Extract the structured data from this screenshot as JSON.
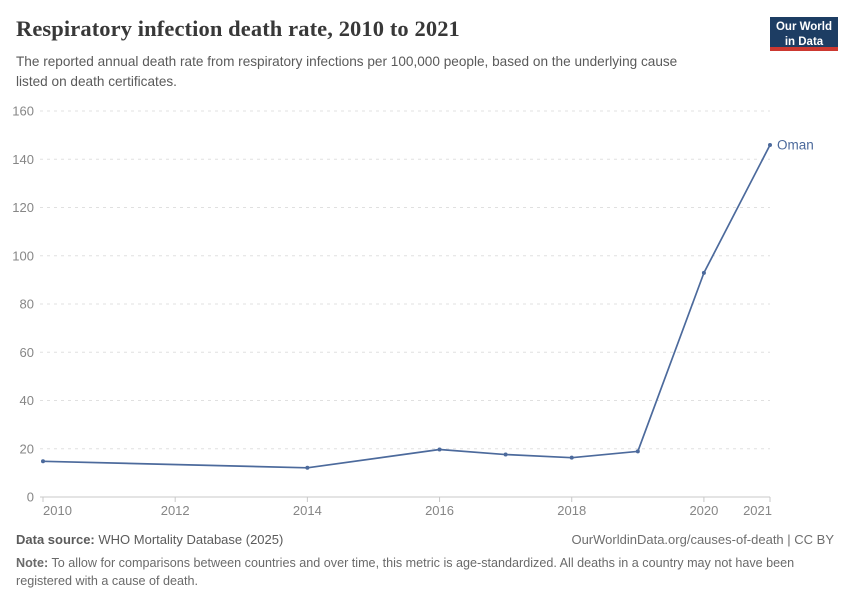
{
  "header": {
    "title": "Respiratory infection death rate, 2010 to 2021",
    "subtitle_line1": "The reported annual death rate from respiratory infections per 100,000 people, based on the underlying cause",
    "subtitle_line2": "listed on death certificates.",
    "logo": {
      "line1": "Our World",
      "line2": "in Data"
    }
  },
  "chart_data": {
    "type": "line",
    "title": "Respiratory infection death rate, 2010 to 2021",
    "xlabel": "",
    "ylabel": "",
    "xlim": [
      2010,
      2021
    ],
    "ylim": [
      0,
      160
    ],
    "x_ticks": [
      2010,
      2012,
      2014,
      2016,
      2018,
      2020,
      2021
    ],
    "y_ticks": [
      0,
      20,
      40,
      60,
      80,
      100,
      120,
      140,
      160
    ],
    "grid": "horizontal-dashed",
    "legend_position": "end-of-line-label",
    "series": [
      {
        "name": "Oman",
        "color": "#4c6a9c",
        "points": [
          [
            2010,
            14.8
          ],
          [
            2014,
            12.1
          ],
          [
            2016,
            19.7
          ],
          [
            2017,
            17.6
          ],
          [
            2018,
            16.3
          ],
          [
            2019,
            18.9
          ],
          [
            2020,
            92.9
          ],
          [
            2021,
            145.9
          ]
        ]
      }
    ]
  },
  "footer": {
    "data_source_label": "Data source:",
    "data_source_value": "WHO Mortality Database (2025)",
    "citation": "OurWorldinData.org/causes-of-death | CC BY",
    "note_label": "Note:",
    "note_line1": "To allow for comparisons between countries and over time, this metric is age-standardized. All deaths in a country may not have been",
    "note_line2": "registered with a cause of death."
  },
  "colors": {
    "line": "#4c6a9c",
    "grid": "#e0e0e0",
    "axis": "#c8c8c8",
    "tick_label": "#868686",
    "title": "#383838",
    "subtitle": "#5a5a5a",
    "logo_bg": "#1d3d63",
    "logo_bar": "#cc3830"
  }
}
